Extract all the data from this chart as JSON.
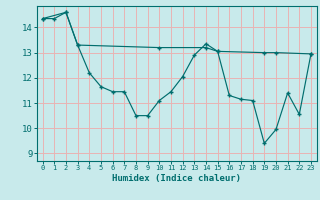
{
  "xlabel": "Humidex (Indice chaleur)",
  "bg_color": "#c8eaeb",
  "grid_color_major": "#e8b4b4",
  "line_color": "#006e6e",
  "xlim": [
    -0.5,
    23.5
  ],
  "ylim": [
    8.7,
    14.85
  ],
  "yticks": [
    9,
    10,
    11,
    12,
    13,
    14
  ],
  "xticks": [
    0,
    1,
    2,
    3,
    4,
    5,
    6,
    7,
    8,
    9,
    10,
    11,
    12,
    13,
    14,
    15,
    16,
    17,
    18,
    19,
    20,
    21,
    22,
    23
  ],
  "series1": [
    [
      0,
      14.35
    ],
    [
      1,
      14.35
    ],
    [
      2,
      14.6
    ],
    [
      3,
      13.3
    ],
    [
      4,
      12.2
    ],
    [
      5,
      11.65
    ],
    [
      6,
      11.45
    ],
    [
      7,
      11.45
    ],
    [
      8,
      10.5
    ],
    [
      9,
      10.5
    ],
    [
      10,
      11.1
    ],
    [
      11,
      11.45
    ],
    [
      12,
      12.05
    ],
    [
      13,
      12.9
    ],
    [
      14,
      13.35
    ],
    [
      15,
      13.05
    ],
    [
      16,
      11.3
    ],
    [
      17,
      11.15
    ],
    [
      18,
      11.1
    ],
    [
      19,
      9.4
    ],
    [
      20,
      9.95
    ],
    [
      21,
      11.4
    ],
    [
      22,
      10.55
    ],
    [
      23,
      12.95
    ]
  ],
  "series2": [
    [
      0,
      14.35
    ],
    [
      2,
      14.6
    ],
    [
      3,
      13.3
    ],
    [
      10,
      13.2
    ],
    [
      14,
      13.2
    ],
    [
      15,
      13.05
    ],
    [
      19,
      13.0
    ],
    [
      20,
      13.0
    ],
    [
      23,
      12.95
    ]
  ]
}
